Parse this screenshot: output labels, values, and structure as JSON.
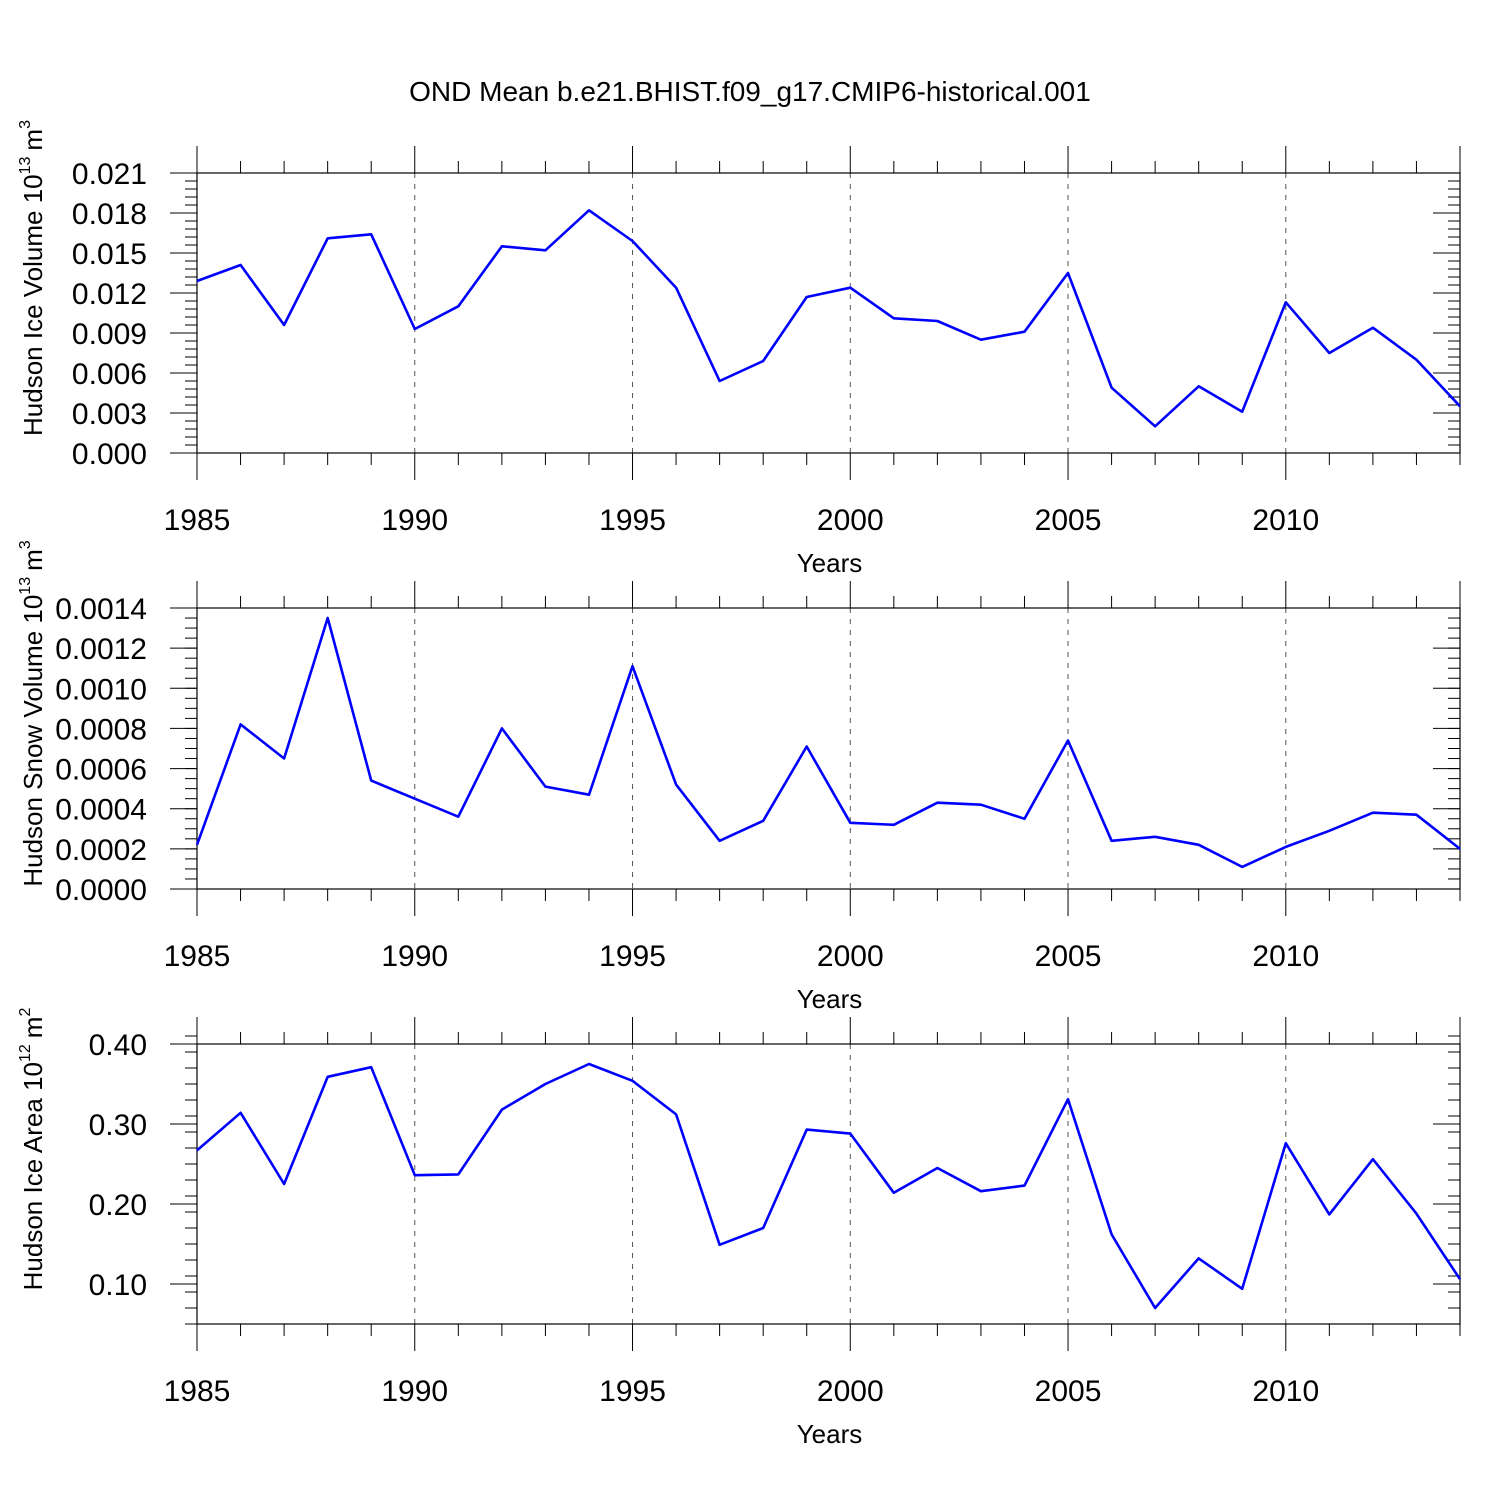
{
  "figure": {
    "title": "OND Mean b.e21.BHIST.f09_g17.CMIP6-historical.001"
  },
  "chart_data": [
    {
      "type": "line",
      "title": "OND Mean b.e21.BHIST.f09_g17.CMIP6-historical.001",
      "xlabel": "Years",
      "ylabel": "Hudson Ice Volume 10",
      "ylabel_exp": "13",
      "ylabel_unit": "m",
      "ylabel_unit_exp": "3",
      "xlim": [
        1985,
        2014
      ],
      "ylim": [
        0.0,
        0.021
      ],
      "xticks": [
        1985,
        1990,
        1995,
        2000,
        2005,
        2010
      ],
      "xtick_labels": [
        "1985",
        "1990",
        "1995",
        "2000",
        "2005",
        "2010"
      ],
      "yticks": [
        0.0,
        0.003,
        0.006,
        0.009,
        0.012,
        0.015,
        0.018,
        0.021
      ],
      "ytick_labels": [
        "0.000",
        "0.003",
        "0.006",
        "0.009",
        "0.012",
        "0.015",
        "0.018",
        "0.021"
      ],
      "y_minor_step": 0.0006,
      "grid": "vertical dashed at major x ticks",
      "color": "#0000ff",
      "x": [
        1985,
        1986,
        1987,
        1988,
        1989,
        1990,
        1991,
        1992,
        1993,
        1994,
        1995,
        1996,
        1997,
        1998,
        1999,
        2000,
        2001,
        2002,
        2003,
        2004,
        2005,
        2006,
        2007,
        2008,
        2009,
        2010,
        2011,
        2012,
        2013,
        2014
      ],
      "values": [
        0.0129,
        0.0141,
        0.0096,
        0.0161,
        0.0164,
        0.0093,
        0.011,
        0.0155,
        0.0152,
        0.0182,
        0.0159,
        0.0124,
        0.0054,
        0.0069,
        0.0117,
        0.0124,
        0.0101,
        0.0099,
        0.0085,
        0.0091,
        0.0135,
        0.0049,
        0.002,
        0.005,
        0.0031,
        0.0113,
        0.0075,
        0.0094,
        0.007,
        0.0035
      ]
    },
    {
      "type": "line",
      "xlabel": "Years",
      "ylabel": "Hudson Snow Volume 10",
      "ylabel_exp": "13",
      "ylabel_unit": "m",
      "ylabel_unit_exp": "3",
      "xlim": [
        1985,
        2014
      ],
      "ylim": [
        0.0,
        0.0014
      ],
      "xticks": [
        1985,
        1990,
        1995,
        2000,
        2005,
        2010
      ],
      "xtick_labels": [
        "1985",
        "1990",
        "1995",
        "2000",
        "2005",
        "2010"
      ],
      "yticks": [
        0.0,
        0.0002,
        0.0004,
        0.0006,
        0.0008,
        0.001,
        0.0012,
        0.0014
      ],
      "ytick_labels": [
        "0.0000",
        "0.0002",
        "0.0004",
        "0.0006",
        "0.0008",
        "0.0010",
        "0.0012",
        "0.0014"
      ],
      "y_minor_step": 5e-05,
      "grid": "vertical dashed at major x ticks",
      "color": "#0000ff",
      "x": [
        1985,
        1986,
        1987,
        1988,
        1989,
        1990,
        1991,
        1992,
        1993,
        1994,
        1995,
        1996,
        1997,
        1998,
        1999,
        2000,
        2001,
        2002,
        2003,
        2004,
        2005,
        2006,
        2007,
        2008,
        2009,
        2010,
        2011,
        2012,
        2013,
        2014
      ],
      "values": [
        0.00022,
        0.00082,
        0.00065,
        0.00135,
        0.00054,
        0.00045,
        0.00036,
        0.0008,
        0.00051,
        0.00047,
        0.00111,
        0.00052,
        0.00024,
        0.00034,
        0.00071,
        0.00033,
        0.00032,
        0.00043,
        0.00042,
        0.00035,
        0.00074,
        0.00024,
        0.00026,
        0.00022,
        0.00011,
        0.00021,
        0.00029,
        0.00038,
        0.00037,
        0.0002
      ]
    },
    {
      "type": "line",
      "xlabel": "Years",
      "ylabel": "Hudson Ice Area 10",
      "ylabel_exp": "12",
      "ylabel_unit": "m",
      "ylabel_unit_exp": "2",
      "xlim": [
        1985,
        2014
      ],
      "ylim": [
        0.05,
        0.4
      ],
      "xticks": [
        1985,
        1990,
        1995,
        2000,
        2005,
        2010
      ],
      "xtick_labels": [
        "1985",
        "1990",
        "1995",
        "2000",
        "2005",
        "2010"
      ],
      "yticks": [
        0.1,
        0.2,
        0.3,
        0.4
      ],
      "ytick_labels": [
        "0.10",
        "0.20",
        "0.30",
        "0.40"
      ],
      "y_minor_step": 0.02,
      "grid": "vertical dashed at major x ticks",
      "color": "#0000ff",
      "x": [
        1985,
        1986,
        1987,
        1988,
        1989,
        1990,
        1991,
        1992,
        1993,
        1994,
        1995,
        1996,
        1997,
        1998,
        1999,
        2000,
        2001,
        2002,
        2003,
        2004,
        2005,
        2006,
        2007,
        2008,
        2009,
        2010,
        2011,
        2012,
        2013,
        2014
      ],
      "values": [
        0.267,
        0.314,
        0.225,
        0.359,
        0.371,
        0.236,
        0.237,
        0.318,
        0.35,
        0.375,
        0.354,
        0.312,
        0.149,
        0.17,
        0.293,
        0.288,
        0.214,
        0.245,
        0.216,
        0.223,
        0.331,
        0.162,
        0.07,
        0.132,
        0.094,
        0.276,
        0.187,
        0.256,
        0.188,
        0.106
      ]
    }
  ]
}
